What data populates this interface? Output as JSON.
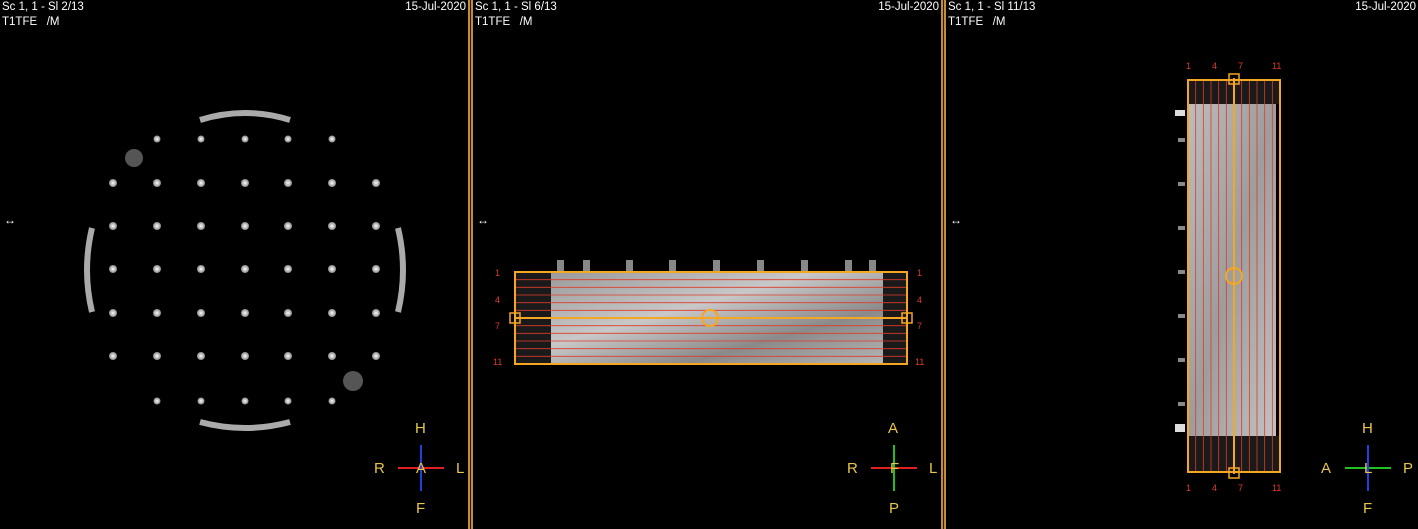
{
  "viewports": [
    {
      "series_info": "Sc 1, 1 - Sl 2/13",
      "sequence": "T1TFE   /M",
      "date": "15-Jul-2020",
      "resize_arrow": "↔",
      "orientation": {
        "top": "H",
        "bottom": "F",
        "left": "R",
        "right": "L",
        "center": "A"
      }
    },
    {
      "series_info": "Sc 1, 1 - Sl 6/13",
      "sequence": "T1TFE   /M",
      "date": "15-Jul-2020",
      "resize_arrow": "↔",
      "orientation": {
        "top": "A",
        "bottom": "P",
        "left": "R",
        "right": "L",
        "center": "F"
      },
      "slice_labels_left": [
        "1",
        "4",
        "7",
        "11"
      ],
      "slice_labels_right": [
        "1",
        "4",
        "7",
        "11"
      ]
    },
    {
      "series_info": "Sc 1, 1 - Sl 11/13",
      "sequence": "T1TFE   /M",
      "date": "15-Jul-2020",
      "resize_arrow": "↔",
      "orientation": {
        "top": "H",
        "bottom": "F",
        "left": "A",
        "right": "P",
        "center": "L"
      },
      "slice_labels_top": [
        "1",
        "4",
        "7",
        "11"
      ],
      "slice_labels_bottom": [
        "1",
        "4",
        "7",
        "11"
      ]
    }
  ],
  "colors": {
    "planning_box": "#f5a623",
    "slice_lines": "#e03a2a",
    "orientation_text": "#e8c64a",
    "axis_red": "#e02020",
    "axis_blue": "#2040e0",
    "axis_green": "#20c020"
  }
}
